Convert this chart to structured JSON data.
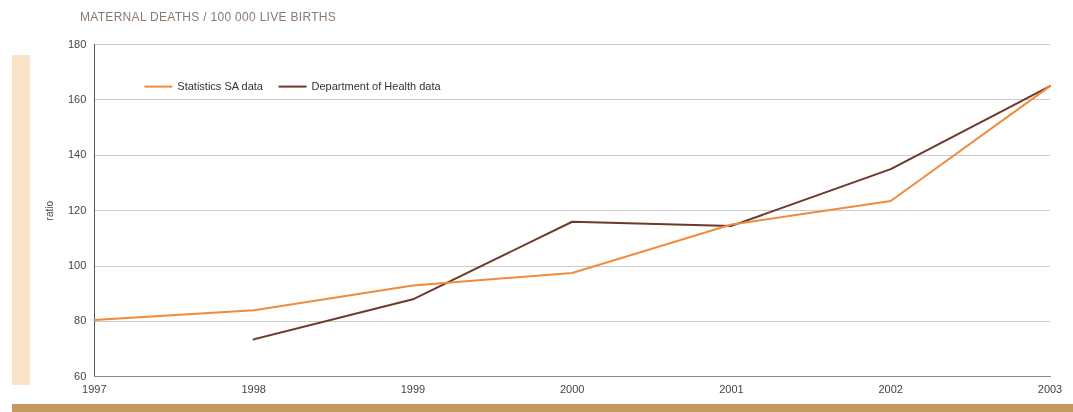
{
  "chart_data": {
    "type": "line",
    "title": "MATERNAL DEATHS / 100 000 LIVE BIRTHS",
    "ylabel": "ratio",
    "x": [
      1997,
      1998,
      1999,
      2000,
      2001,
      2002,
      2003
    ],
    "series": [
      {
        "name": "Statistics SA data",
        "color": "#f08a3c",
        "values": [
          80.5,
          84,
          93,
          97.5,
          115,
          123.5,
          165
        ]
      },
      {
        "name": "Department of Health data",
        "color": "#6b3a2a",
        "values": [
          null,
          73.5,
          88,
          116,
          114.5,
          135,
          165
        ]
      }
    ],
    "xlim": [
      1997,
      2003
    ],
    "xticks": [
      1997,
      1998,
      1999,
      2000,
      2001,
      2002,
      2003
    ],
    "ylim": [
      60,
      180
    ],
    "yticks": [
      60,
      80,
      100,
      120,
      140,
      160,
      180
    ],
    "grid": "y",
    "legend": "top left",
    "marker": "none",
    "line_style": "solid"
  }
}
